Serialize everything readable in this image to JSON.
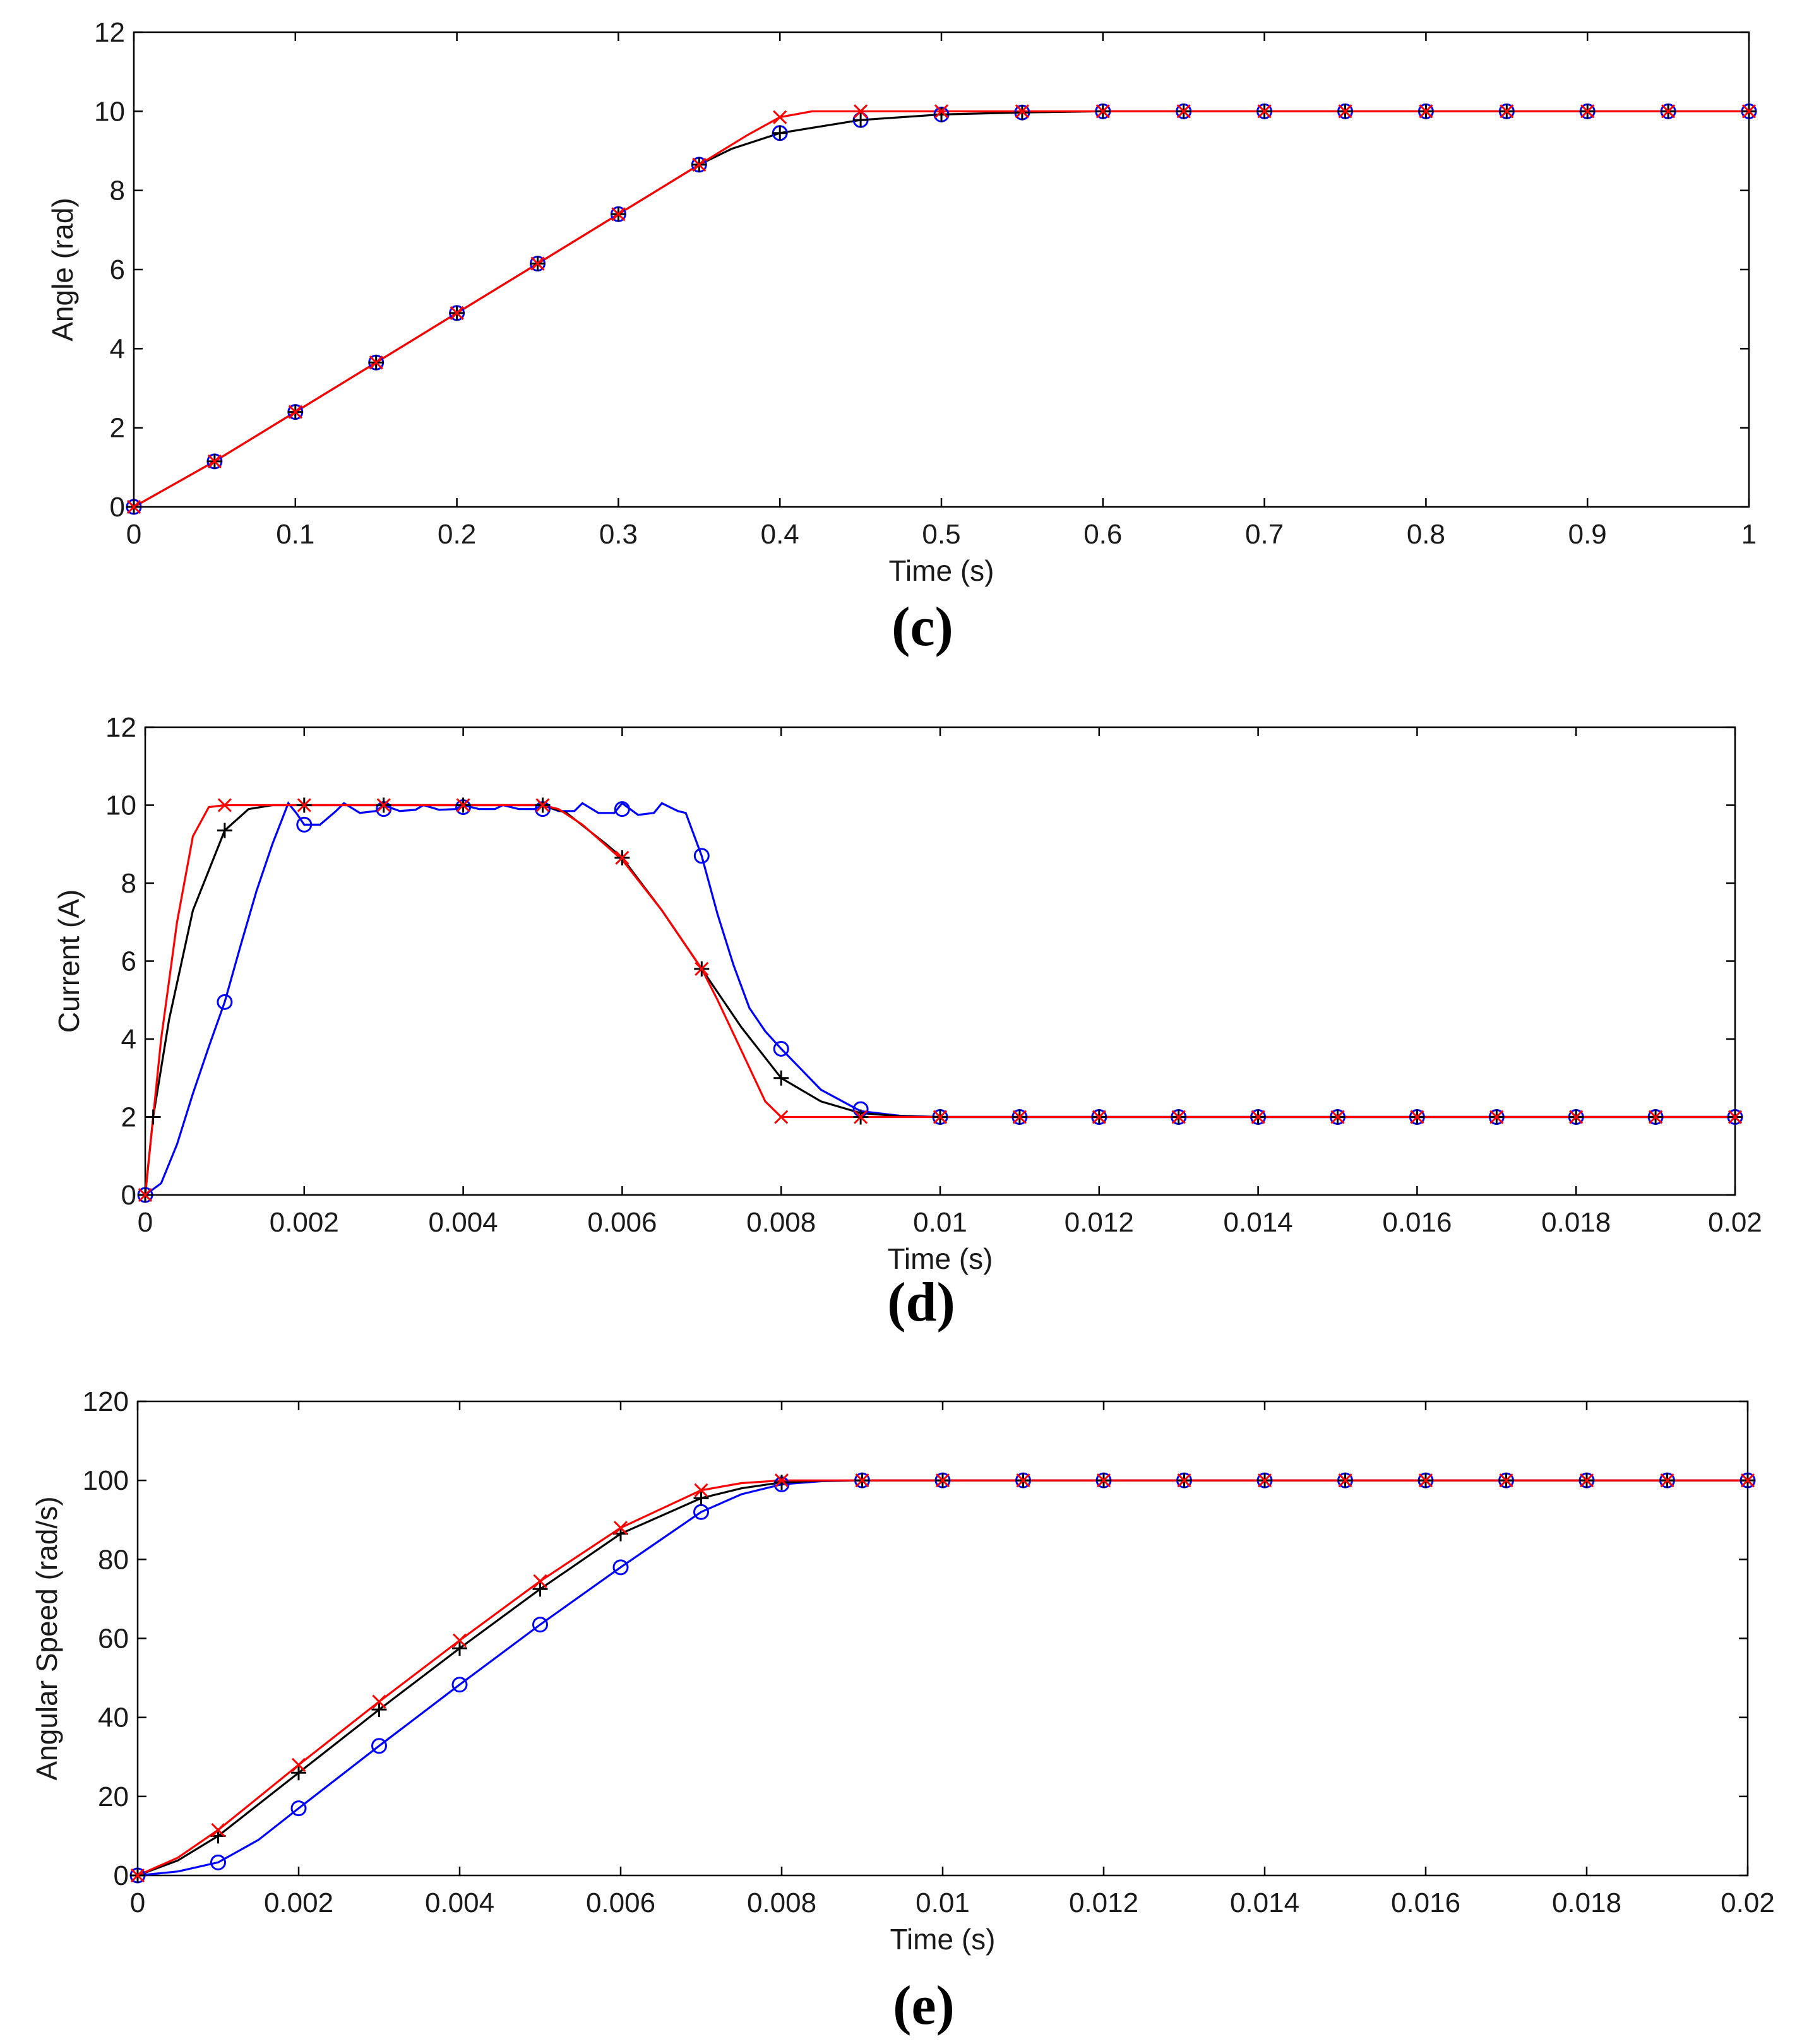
{
  "chart_data": [
    {
      "type": "line",
      "panel": "(c)",
      "caption": "(c)",
      "xlabel": "Time (s)",
      "ylabel": "Angle (rad)",
      "xlim": [
        0,
        1
      ],
      "ylim": [
        0,
        12
      ],
      "xticks": [
        0,
        0.1,
        0.2,
        0.3,
        0.4,
        0.5,
        0.6,
        0.7,
        0.8,
        0.9,
        1
      ],
      "xtick_labels": [
        "0",
        "0.1",
        "0.2",
        "0.3",
        "0.4",
        "0.5",
        "0.6",
        "0.7",
        "0.8",
        "0.9",
        "1"
      ],
      "yticks": [
        0,
        2,
        4,
        6,
        8,
        10,
        12
      ],
      "ytick_labels": [
        "0",
        "2",
        "4",
        "6",
        "8",
        "10",
        "12"
      ],
      "grid": false,
      "series": [
        {
          "name": "red-x",
          "color": "#ff0000",
          "marker": "x",
          "line": {
            "x": [
              0,
              0.05,
              0.1,
              0.15,
              0.2,
              0.25,
              0.3,
              0.35,
              0.38,
              0.4,
              0.42,
              0.45,
              0.5,
              1
            ],
            "y": [
              0,
              1.15,
              2.4,
              3.65,
              4.9,
              6.15,
              7.4,
              8.65,
              9.4,
              9.85,
              10,
              10,
              10,
              10
            ]
          },
          "markers": {
            "x": [
              0,
              0.05,
              0.1,
              0.15,
              0.2,
              0.25,
              0.3,
              0.35,
              0.4,
              0.45,
              0.5,
              0.55,
              0.6,
              0.65,
              0.7,
              0.75,
              0.8,
              0.85,
              0.9,
              0.95,
              1
            ],
            "y": [
              0,
              1.15,
              2.4,
              3.65,
              4.9,
              6.15,
              7.4,
              8.65,
              9.85,
              10,
              10,
              10,
              10,
              10,
              10,
              10,
              10,
              10,
              10,
              10,
              10
            ]
          }
        },
        {
          "name": "black-plus",
          "color": "#000000",
          "marker": "+",
          "line": {
            "x": [
              0,
              0.05,
              0.1,
              0.15,
              0.2,
              0.25,
              0.3,
              0.35,
              0.37,
              0.4,
              0.45,
              0.5,
              0.55,
              0.6,
              1
            ],
            "y": [
              0,
              1.15,
              2.4,
              3.65,
              4.9,
              6.15,
              7.4,
              8.65,
              9.05,
              9.45,
              9.78,
              9.92,
              9.97,
              10,
              10
            ]
          },
          "markers": {
            "x": [
              0,
              0.05,
              0.1,
              0.15,
              0.2,
              0.25,
              0.3,
              0.35,
              0.4,
              0.45,
              0.5,
              0.55,
              0.6,
              0.65,
              0.7,
              0.75,
              0.8,
              0.85,
              0.9,
              0.95,
              1
            ],
            "y": [
              0,
              1.15,
              2.4,
              3.65,
              4.9,
              6.15,
              7.4,
              8.65,
              9.45,
              9.78,
              9.92,
              9.97,
              10,
              10,
              10,
              10,
              10,
              10,
              10,
              10,
              10
            ]
          }
        },
        {
          "name": "blue-o",
          "color": "#0000ff",
          "marker": "o",
          "line": {
            "x": [],
            "y": []
          },
          "markers": {
            "x": [
              0,
              0.05,
              0.1,
              0.15,
              0.2,
              0.25,
              0.3,
              0.35,
              0.4,
              0.45,
              0.5,
              0.55,
              0.6,
              0.65,
              0.7,
              0.75,
              0.8,
              0.85,
              0.9,
              0.95,
              1
            ],
            "y": [
              0,
              1.15,
              2.4,
              3.65,
              4.9,
              6.15,
              7.4,
              8.65,
              9.45,
              9.78,
              9.92,
              9.97,
              10,
              10,
              10,
              10,
              10,
              10,
              10,
              10,
              10
            ]
          }
        }
      ]
    },
    {
      "type": "line",
      "panel": "(d)",
      "caption": "(d)",
      "xlabel": "Time (s)",
      "ylabel": "Current (A)",
      "xlim": [
        0,
        0.02
      ],
      "ylim": [
        0,
        12
      ],
      "xticks": [
        0,
        0.002,
        0.004,
        0.006,
        0.008,
        0.01,
        0.012,
        0.014,
        0.016,
        0.018,
        0.02
      ],
      "xtick_labels": [
        "0",
        "0.002",
        "0.004",
        "0.006",
        "0.008",
        "0.01",
        "0.012",
        "0.014",
        "0.016",
        "0.018",
        "0.02"
      ],
      "yticks": [
        0,
        2,
        4,
        6,
        8,
        10,
        12
      ],
      "ytick_labels": [
        "0",
        "2",
        "4",
        "6",
        "8",
        "10",
        "12"
      ],
      "grid": false,
      "series": [
        {
          "name": "red-x",
          "color": "#ff0000",
          "marker": "x",
          "line": {
            "x": [
              0,
              0.0001,
              0.0002,
              0.0004,
              0.0006,
              0.0008,
              0.001,
              0.005,
              0.0052,
              0.0055,
              0.006,
              0.0065,
              0.007,
              0.0072,
              0.0075,
              0.0078,
              0.008,
              0.0085,
              0.009,
              0.02
            ],
            "y": [
              0,
              2,
              4,
              7,
              9.2,
              9.95,
              10,
              10,
              9.9,
              9.5,
              8.6,
              7.3,
              5.8,
              5.0,
              3.7,
              2.4,
              2.0,
              2.0,
              2.0,
              2.0
            ]
          },
          "markers": {
            "x": [
              0,
              0.001,
              0.002,
              0.003,
              0.004,
              0.005,
              0.006,
              0.007,
              0.008,
              0.009,
              0.01,
              0.011,
              0.012,
              0.013,
              0.014,
              0.015,
              0.016,
              0.017,
              0.018,
              0.019,
              0.02
            ],
            "y": [
              0,
              10,
              10,
              10,
              10,
              10,
              8.65,
              5.8,
              2.0,
              2.0,
              2.0,
              2.0,
              2.0,
              2.0,
              2.0,
              2.0,
              2.0,
              2.0,
              2.0,
              2.0,
              2.0
            ]
          }
        },
        {
          "name": "black-plus",
          "color": "#000000",
          "marker": "+",
          "line": {
            "x": [
              0,
              0.0001,
              0.0003,
              0.0006,
              0.001,
              0.0013,
              0.0016,
              0.0018,
              0.005,
              0.0053,
              0.0058,
              0.006,
              0.0065,
              0.007,
              0.0075,
              0.008,
              0.0085,
              0.009,
              0.0095,
              0.01,
              0.02
            ],
            "y": [
              0,
              2,
              4.5,
              7.3,
              9.35,
              9.9,
              10,
              10,
              10,
              9.8,
              9.0,
              8.65,
              7.3,
              5.8,
              4.3,
              3.0,
              2.4,
              2.1,
              2.02,
              2.0,
              2.0
            ]
          },
          "markers": {
            "x": [
              0,
              0.0001,
              0.001,
              0.002,
              0.003,
              0.004,
              0.005,
              0.006,
              0.007,
              0.008,
              0.009,
              0.01,
              0.011,
              0.012,
              0.013,
              0.014,
              0.015,
              0.016,
              0.017,
              0.018,
              0.019,
              0.02
            ],
            "y": [
              0,
              2,
              9.35,
              10,
              10,
              10,
              10,
              8.65,
              5.8,
              3.0,
              2.0,
              2.0,
              2.0,
              2.0,
              2.0,
              2.0,
              2.0,
              2.0,
              2.0,
              2.0,
              2.0,
              2.0
            ]
          }
        },
        {
          "name": "blue-o",
          "color": "#0000ff",
          "marker": "o",
          "line": {
            "x": [
              0,
              0.0002,
              0.0004,
              0.0006,
              0.0008,
              0.001,
              0.0012,
              0.0014,
              0.0016,
              0.0018,
              0.0019,
              0.002,
              0.0022,
              0.0024,
              0.0025,
              0.0027,
              0.0029,
              0.003,
              0.0032,
              0.0034,
              0.0035,
              0.0037,
              0.0039,
              0.004,
              0.0042,
              0.0044,
              0.0045,
              0.0047,
              0.0049,
              0.005,
              0.0052,
              0.0054,
              0.0055,
              0.0057,
              0.0059,
              0.006,
              0.0062,
              0.0064,
              0.0065,
              0.0067,
              0.0068,
              0.007,
              0.0072,
              0.0074,
              0.0076,
              0.0078,
              0.008,
              0.0085,
              0.009,
              0.0095,
              0.01,
              0.02
            ],
            "y": [
              0,
              0.3,
              1.3,
              2.6,
              3.8,
              4.95,
              6.4,
              7.8,
              9.0,
              10.05,
              9.8,
              9.5,
              9.5,
              9.85,
              10.05,
              9.8,
              9.85,
              10.0,
              9.85,
              9.88,
              10.0,
              9.88,
              9.9,
              10.0,
              9.9,
              9.9,
              10.0,
              9.9,
              9.9,
              10.0,
              9.85,
              9.85,
              10.05,
              9.8,
              9.8,
              10.05,
              9.75,
              9.8,
              10.05,
              9.85,
              9.8,
              8.7,
              7.2,
              5.9,
              4.8,
              4.2,
              3.75,
              2.7,
              2.15,
              2.03,
              2.0,
              2.0
            ]
          },
          "markers": {
            "x": [
              0,
              0.001,
              0.002,
              0.003,
              0.004,
              0.005,
              0.006,
              0.007,
              0.008,
              0.009,
              0.01,
              0.011,
              0.012,
              0.013,
              0.014,
              0.015,
              0.016,
              0.017,
              0.018,
              0.019,
              0.02
            ],
            "y": [
              0,
              4.95,
              9.5,
              9.9,
              9.95,
              9.9,
              9.9,
              8.7,
              3.75,
              2.2,
              2.0,
              2.0,
              2.0,
              2.0,
              2.0,
              2.0,
              2.0,
              2.0,
              2.0,
              2.0,
              2.0
            ]
          }
        }
      ]
    },
    {
      "type": "line",
      "panel": "(e)",
      "caption": "(e)",
      "xlabel": "Time (s)",
      "ylabel": "Angular Speed (rad/s)",
      "xlim": [
        0,
        0.02
      ],
      "ylim": [
        0,
        120
      ],
      "xticks": [
        0,
        0.002,
        0.004,
        0.006,
        0.008,
        0.01,
        0.012,
        0.014,
        0.016,
        0.018,
        0.02
      ],
      "xtick_labels": [
        "0",
        "0.002",
        "0.004",
        "0.006",
        "0.008",
        "0.01",
        "0.012",
        "0.014",
        "0.016",
        "0.018",
        "0.02"
      ],
      "yticks": [
        0,
        20,
        40,
        60,
        80,
        100,
        120
      ],
      "ytick_labels": [
        "0",
        "20",
        "40",
        "60",
        "80",
        "100",
        "120"
      ],
      "grid": false,
      "series": [
        {
          "name": "red-x",
          "color": "#ff0000",
          "marker": "x",
          "line": {
            "x": [
              0,
              0.0005,
              0.001,
              0.002,
              0.003,
              0.004,
              0.005,
              0.006,
              0.007,
              0.0075,
              0.008,
              0.0085,
              0.009,
              0.02
            ],
            "y": [
              0,
              4.5,
              11.5,
              28,
              44,
              59.5,
              74.5,
              88,
              97.5,
              99.3,
              100,
              100,
              100,
              100
            ]
          },
          "markers": {
            "x": [
              0,
              0.001,
              0.002,
              0.003,
              0.004,
              0.005,
              0.006,
              0.007,
              0.008,
              0.009,
              0.01,
              0.011,
              0.012,
              0.013,
              0.014,
              0.015,
              0.016,
              0.017,
              0.018,
              0.019,
              0.02
            ],
            "y": [
              0,
              11.5,
              28,
              44,
              59.5,
              74.5,
              88,
              97.5,
              100,
              100,
              100,
              100,
              100,
              100,
              100,
              100,
              100,
              100,
              100,
              100,
              100
            ]
          }
        },
        {
          "name": "black-plus",
          "color": "#000000",
          "marker": "+",
          "line": {
            "x": [
              0,
              0.0005,
              0.001,
              0.002,
              0.003,
              0.004,
              0.005,
              0.006,
              0.007,
              0.0075,
              0.008,
              0.0085,
              0.009,
              0.02
            ],
            "y": [
              0,
              3.8,
              10,
              26,
              42,
              57.5,
              72.5,
              86.5,
              95.5,
              98,
              99.5,
              99.9,
              100,
              100
            ]
          },
          "markers": {
            "x": [
              0,
              0.001,
              0.002,
              0.003,
              0.004,
              0.005,
              0.006,
              0.007,
              0.008,
              0.009,
              0.01,
              0.011,
              0.012,
              0.013,
              0.014,
              0.015,
              0.016,
              0.017,
              0.018,
              0.019,
              0.02
            ],
            "y": [
              0,
              10,
              26,
              42,
              57.5,
              72.5,
              86.5,
              95.5,
              99.5,
              100,
              100,
              100,
              100,
              100,
              100,
              100,
              100,
              100,
              100,
              100,
              100
            ]
          }
        },
        {
          "name": "blue-o",
          "color": "#0000ff",
          "marker": "o",
          "line": {
            "x": [
              0,
              0.0005,
              0.001,
              0.0015,
              0.002,
              0.003,
              0.004,
              0.005,
              0.006,
              0.007,
              0.0075,
              0.008,
              0.0085,
              0.009,
              0.0095,
              0.02
            ],
            "y": [
              0,
              1,
              3.3,
              9,
              17,
              32.8,
              48.3,
              63.5,
              78,
              92,
              96.5,
              99,
              99.8,
              100,
              100,
              100
            ]
          },
          "markers": {
            "x": [
              0,
              0.001,
              0.002,
              0.003,
              0.004,
              0.005,
              0.006,
              0.007,
              0.008,
              0.009,
              0.01,
              0.011,
              0.012,
              0.013,
              0.014,
              0.015,
              0.016,
              0.017,
              0.018,
              0.019,
              0.02
            ],
            "y": [
              0,
              3.3,
              17,
              32.8,
              48.3,
              63.5,
              78,
              92,
              99,
              100,
              100,
              100,
              100,
              100,
              100,
              100,
              100,
              100,
              100,
              100,
              100
            ]
          }
        }
      ]
    }
  ]
}
